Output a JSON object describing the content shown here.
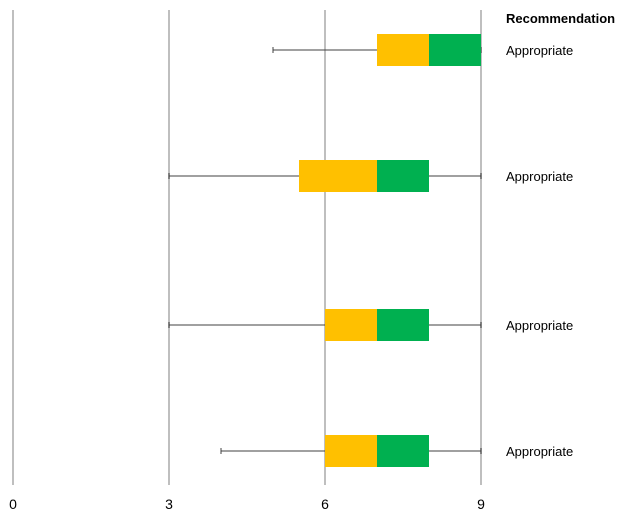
{
  "colors": {
    "q1": "#FFC000",
    "q3": "#00B050",
    "grid": "#BFBFBF",
    "whisker": "#404040"
  },
  "chart_data": {
    "type": "box",
    "orientation": "horizontal",
    "xlim": [
      0,
      9
    ],
    "xticks": [
      0,
      3,
      6,
      9
    ],
    "grid": true,
    "legend": "none",
    "column_header": "Recommendation",
    "boxes": [
      {
        "min": 5,
        "q1": 7,
        "median": 8,
        "q3": 9,
        "max": 9,
        "recommendation": "Appropriate"
      },
      {
        "min": 3,
        "q1": 5.5,
        "median": 7,
        "q3": 8,
        "max": 9,
        "recommendation": "Appropriate"
      },
      {
        "min": 3,
        "q1": 6,
        "median": 7,
        "q3": 8,
        "max": 9,
        "recommendation": "Appropriate"
      },
      {
        "min": 4,
        "q1": 6,
        "median": 7,
        "q3": 8,
        "max": 9,
        "recommendation": "Appropriate"
      }
    ]
  }
}
